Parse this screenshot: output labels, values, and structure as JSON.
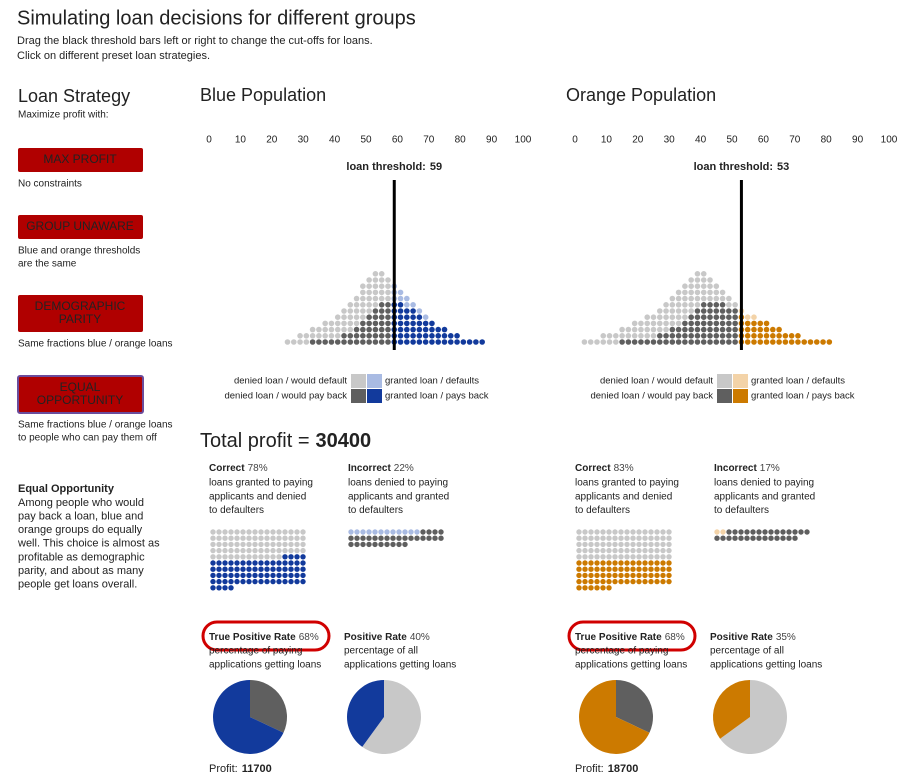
{
  "header": {
    "title": "Simulating loan decisions for different groups",
    "subtitle": [
      "Drag the black threshold bars left or right to change the cut-offs for loans.",
      "Click on different preset loan strategies."
    ]
  },
  "sidebar": {
    "title": "Loan Strategy",
    "subtitle": "Maximize profit with:",
    "strategies": [
      {
        "button": [
          "MAX PROFIT"
        ],
        "description": [
          "No constraints"
        ]
      },
      {
        "button": [
          "GROUP UNAWARE"
        ],
        "description": [
          "Blue and orange thresholds",
          "are the same"
        ]
      },
      {
        "button": [
          "DEMOGRAPHIC",
          "PARITY"
        ],
        "description": [
          "Same fractions blue / orange loans"
        ]
      },
      {
        "button": [
          "EQUAL",
          "OPPORTUNITY"
        ],
        "selected": true,
        "description": [
          "Same fractions blue / orange loans",
          "to people who can pay them off"
        ]
      }
    ],
    "note": {
      "title": "Equal Opportunity",
      "lines": [
        "Among people who would",
        "pay back a loan, blue and",
        "orange groups do equally",
        "well. This choice is almost as",
        "profitable as demographic",
        "parity, and about as many",
        "people get loans overall."
      ]
    }
  },
  "axis_ticks": [
    0,
    10,
    20,
    30,
    40,
    50,
    60,
    70,
    80,
    90,
    100
  ],
  "threshold_label": "loan threshold:",
  "legend": {
    "denied_default": "denied loan / would default",
    "denied_payback": "denied loan / would pay back",
    "granted_default": "granted loan / defaults",
    "granted_payback": "granted loan / pays back"
  },
  "total_profit": {
    "label": "Total profit =",
    "value": 30400
  },
  "stat_labels": {
    "correct": "Correct",
    "incorrect": "Incorrect",
    "tpr": "True Positive Rate",
    "pr": "Positive Rate",
    "profit": "Profit:",
    "correct_desc": [
      "loans granted to paying",
      "applicants and denied",
      "to defaulters"
    ],
    "incorrect_desc": [
      "loans denied to paying",
      "applicants and granted",
      "to defaulters"
    ],
    "tpr_desc": [
      "percentage of paying",
      "applications getting loans"
    ],
    "pr_desc": [
      "percentage of all",
      "applications getting loans"
    ]
  },
  "populations": [
    {
      "title": "Blue Population",
      "color": "#123a9c",
      "light_color": "#a9bbe3",
      "threshold": 59,
      "scores": [
        25,
        27,
        29,
        31,
        33,
        35,
        37,
        39,
        41,
        43,
        45,
        47,
        49,
        51,
        53,
        55,
        57,
        59,
        61,
        63,
        65,
        67,
        69,
        71,
        73,
        75,
        77,
        79,
        81,
        83,
        85,
        87
      ],
      "payback": [
        0,
        0,
        0,
        0,
        1,
        1,
        1,
        1,
        1,
        2,
        2,
        3,
        4,
        5,
        6,
        7,
        7,
        7,
        7,
        6,
        6,
        5,
        4,
        4,
        3,
        3,
        2,
        2,
        1,
        1,
        1,
        1
      ],
      "default": [
        1,
        1,
        2,
        2,
        2,
        2,
        3,
        3,
        4,
        4,
        5,
        5,
        6,
        6,
        6,
        5,
        4,
        3,
        2,
        2,
        1,
        1,
        1,
        0,
        0,
        0,
        0,
        0,
        0,
        0,
        0,
        0
      ],
      "correct": "78%",
      "incorrect": "22%",
      "waffle": {
        "correct_denied": 76,
        "correct_granted": 72,
        "incorrect_granted": 12,
        "incorrect_denied": 30
      },
      "tpr": {
        "value": 68,
        "label": "68%"
      },
      "pr": {
        "value": 40,
        "label": "40%"
      },
      "profit": 11700
    },
    {
      "title": "Orange Population",
      "color": "#cc7a00",
      "light_color": "#f3d3a8",
      "threshold": 53,
      "scores": [
        3,
        5,
        7,
        9,
        11,
        13,
        15,
        17,
        19,
        21,
        23,
        25,
        27,
        29,
        31,
        33,
        35,
        37,
        39,
        41,
        43,
        45,
        47,
        49,
        51,
        53,
        55,
        57,
        59,
        61,
        63,
        65,
        67,
        69,
        71,
        73,
        75,
        77,
        79,
        81
      ],
      "payback": [
        0,
        0,
        0,
        0,
        0,
        0,
        1,
        1,
        1,
        1,
        1,
        1,
        2,
        2,
        3,
        3,
        4,
        5,
        6,
        7,
        7,
        7,
        7,
        6,
        6,
        5,
        4,
        4,
        4,
        4,
        3,
        3,
        2,
        2,
        2,
        1,
        1,
        1,
        1,
        1
      ],
      "default": [
        1,
        1,
        1,
        2,
        2,
        2,
        2,
        2,
        3,
        3,
        4,
        4,
        4,
        5,
        5,
        6,
        6,
        6,
        6,
        5,
        4,
        3,
        2,
        2,
        1,
        1,
        1,
        1,
        0,
        0,
        0,
        0,
        0,
        0,
        0,
        0,
        0,
        0,
        0,
        0
      ],
      "correct": "83%",
      "incorrect": "17%",
      "waffle": {
        "correct_denied": 80,
        "correct_granted": 70,
        "incorrect_granted": 2,
        "incorrect_denied": 28
      },
      "tpr": {
        "value": 68,
        "label": "68%"
      },
      "pr": {
        "value": 35,
        "label": "35%"
      },
      "profit": 18700
    }
  ]
}
